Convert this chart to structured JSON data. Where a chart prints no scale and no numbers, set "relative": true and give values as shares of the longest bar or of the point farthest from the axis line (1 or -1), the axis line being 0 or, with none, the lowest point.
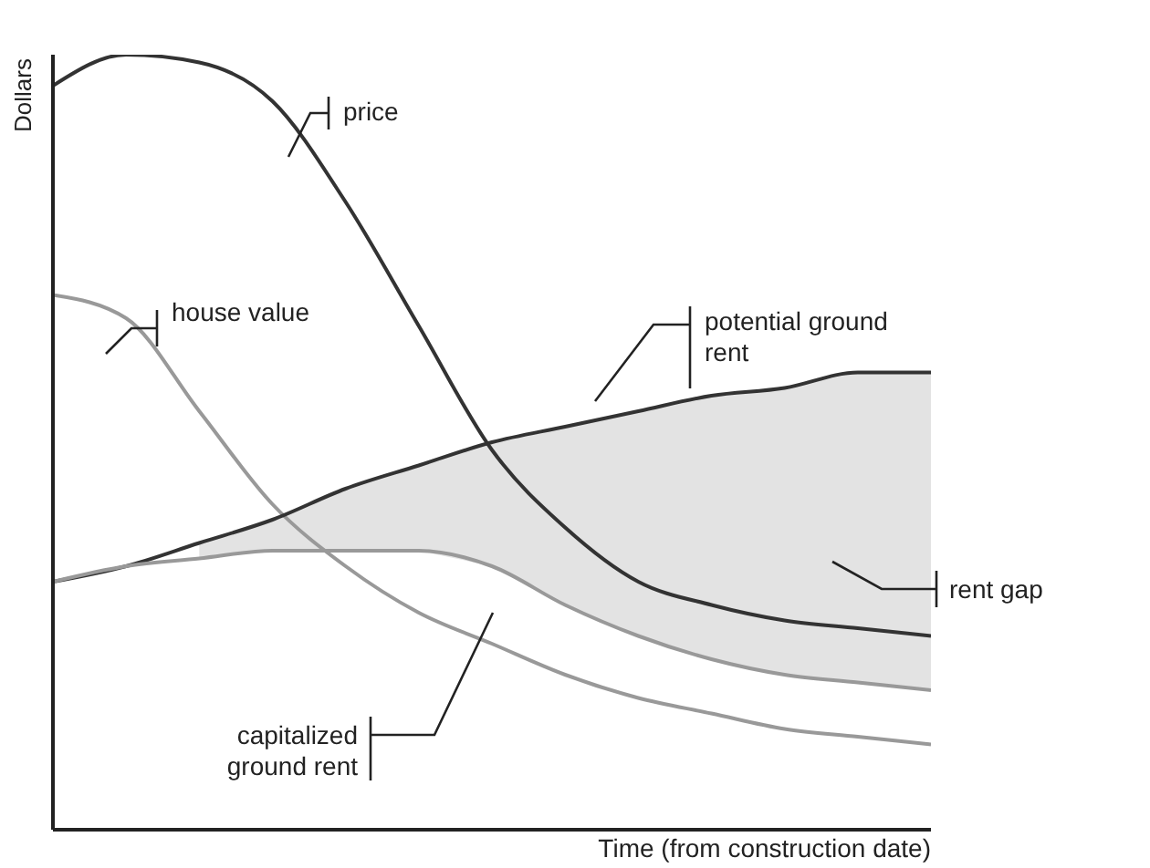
{
  "chart_data": {
    "type": "line",
    "relative": true,
    "xlabel": "Time (from construction date)",
    "ylabel": "Dollars",
    "categories": [
      null,
      null,
      null,
      null,
      null,
      null,
      null,
      null,
      null,
      null,
      null,
      null,
      null
    ],
    "series": [
      {
        "name": "price",
        "color": "#333333",
        "values": [
          0.96,
          1.0,
          0.99,
          0.94,
          0.81,
          0.65,
          0.49,
          0.39,
          0.32,
          0.29,
          0.27,
          0.26,
          0.25
        ]
      },
      {
        "name": "house value",
        "color": "#999999",
        "values": [
          0.69,
          0.66,
          0.54,
          0.42,
          0.34,
          0.28,
          0.24,
          0.2,
          0.17,
          0.15,
          0.13,
          0.12,
          0.11
        ]
      },
      {
        "name": "potential ground rent",
        "color": "#333333",
        "values": [
          0.32,
          0.34,
          0.37,
          0.4,
          0.44,
          0.47,
          0.5,
          0.52,
          0.54,
          0.56,
          0.57,
          0.59,
          0.59
        ],
        "lower": [
          null,
          null,
          0.35,
          0.36,
          0.36,
          0.36,
          0.34,
          0.29,
          0.25,
          0.22,
          0.2,
          0.19,
          0.18
        ],
        "upper": [
          null,
          null,
          0.37,
          0.4,
          0.44,
          0.47,
          0.5,
          0.52,
          0.54,
          0.56,
          0.57,
          0.59,
          0.59
        ]
      },
      {
        "name": "capitalized ground rent",
        "color": "#999999",
        "values": [
          0.32,
          0.34,
          0.35,
          0.36,
          0.36,
          0.36,
          0.34,
          0.29,
          0.25,
          0.22,
          0.2,
          0.19,
          0.18
        ]
      }
    ],
    "annotations": [
      "rent gap"
    ],
    "legend": false,
    "grid": false,
    "marker": "none",
    "line_style": "solid"
  }
}
